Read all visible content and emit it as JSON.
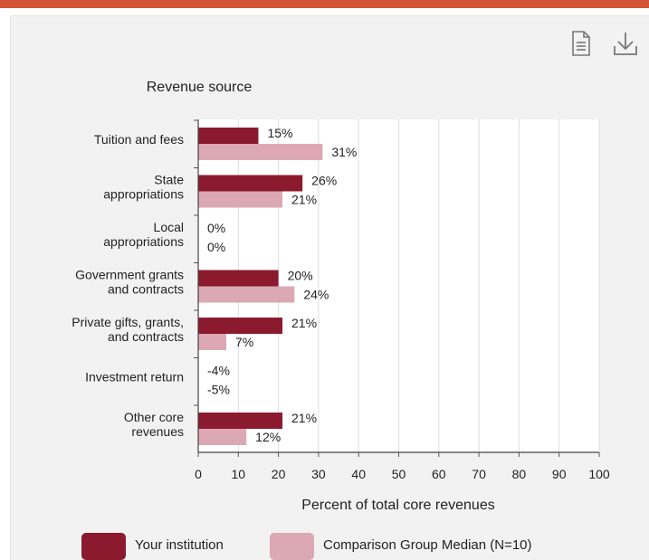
{
  "toolbar": {
    "data_table_icon": "document-icon",
    "download_icon": "download-icon"
  },
  "colors": {
    "accent": "#d45535",
    "institution": "#8b1a2e",
    "comparison": "#dba8b3"
  },
  "chart_data": {
    "type": "bar",
    "orientation": "horizontal",
    "title": "Revenue source",
    "xlabel": "Percent of total core revenues",
    "ylabel": "",
    "xlim": [
      0,
      100
    ],
    "xticks": [
      0,
      10,
      20,
      30,
      40,
      50,
      60,
      70,
      80,
      90,
      100
    ],
    "grid": true,
    "legend_position": "bottom",
    "categories": [
      [
        "Tuition and fees"
      ],
      [
        "State",
        "appropriations"
      ],
      [
        "Local",
        "appropriations"
      ],
      [
        "Government grants",
        "and contracts"
      ],
      [
        "Private gifts, grants,",
        "and contracts"
      ],
      [
        "Investment return"
      ],
      [
        "Other core",
        "revenues"
      ]
    ],
    "series": [
      {
        "name": "Your institution",
        "color": "#8b1a2e",
        "values": [
          15,
          26,
          0,
          20,
          21,
          -4,
          21
        ],
        "labels": [
          "15%",
          "26%",
          "0%",
          "20%",
          "21%",
          "-4%",
          "21%"
        ]
      },
      {
        "name": "Comparison Group Median (N=10)",
        "color": "#dba8b3",
        "values": [
          31,
          21,
          0,
          24,
          7,
          -5,
          12
        ],
        "labels": [
          "31%",
          "21%",
          "0%",
          "24%",
          "7%",
          "-5%",
          "12%"
        ]
      }
    ]
  }
}
